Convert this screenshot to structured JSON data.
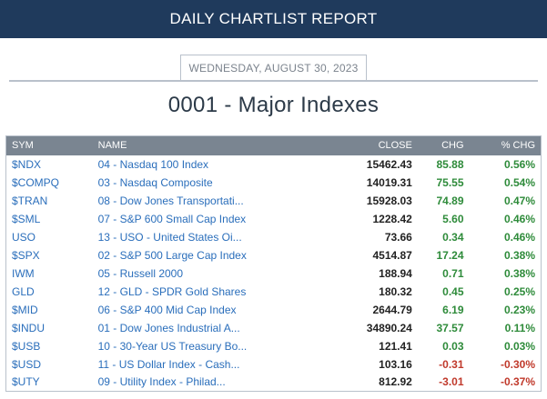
{
  "header": {
    "title": "DAILY CHARTLIST REPORT"
  },
  "date": "WEDNESDAY, AUGUST 30, 2023",
  "list_title": "0001 - Major Indexes",
  "columns": {
    "sym": "SYM",
    "name": "NAME",
    "close": "CLOSE",
    "chg": "CHG",
    "pct": "% CHG"
  },
  "colors": {
    "header_bg": "#1f3a5c",
    "table_header_bg": "#7a8591",
    "link": "#2a6ebb",
    "positive": "#2e8b3a",
    "negative": "#c0392b"
  },
  "rows": [
    {
      "sym": "$NDX",
      "name": "04 - Nasdaq 100 Index",
      "close": "15462.43",
      "chg": "85.88",
      "pct": "0.56%",
      "dir": "pos"
    },
    {
      "sym": "$COMPQ",
      "name": "03 - Nasdaq Composite",
      "close": "14019.31",
      "chg": "75.55",
      "pct": "0.54%",
      "dir": "pos"
    },
    {
      "sym": "$TRAN",
      "name": "08 - Dow Jones Transportati...",
      "close": "15928.03",
      "chg": "74.89",
      "pct": "0.47%",
      "dir": "pos"
    },
    {
      "sym": "$SML",
      "name": "07 - S&P 600 Small Cap Index",
      "close": "1228.42",
      "chg": "5.60",
      "pct": "0.46%",
      "dir": "pos"
    },
    {
      "sym": "USO",
      "name": "13 - USO - United States Oi...",
      "close": "73.66",
      "chg": "0.34",
      "pct": "0.46%",
      "dir": "pos"
    },
    {
      "sym": "$SPX",
      "name": "02 - S&P 500 Large Cap Index",
      "close": "4514.87",
      "chg": "17.24",
      "pct": "0.38%",
      "dir": "pos"
    },
    {
      "sym": "IWM",
      "name": "05 - Russell 2000",
      "close": "188.94",
      "chg": "0.71",
      "pct": "0.38%",
      "dir": "pos"
    },
    {
      "sym": "GLD",
      "name": "12 - GLD - SPDR Gold Shares",
      "close": "180.32",
      "chg": "0.45",
      "pct": "0.25%",
      "dir": "pos"
    },
    {
      "sym": "$MID",
      "name": "06 - S&P 400 Mid Cap Index",
      "close": "2644.79",
      "chg": "6.19",
      "pct": "0.23%",
      "dir": "pos"
    },
    {
      "sym": "$INDU",
      "name": "01 - Dow Jones Industrial A...",
      "close": "34890.24",
      "chg": "37.57",
      "pct": "0.11%",
      "dir": "pos"
    },
    {
      "sym": "$USB",
      "name": "10 - 30-Year US Treasury Bo...",
      "close": "121.41",
      "chg": "0.03",
      "pct": "0.03%",
      "dir": "pos"
    },
    {
      "sym": "$USD",
      "name": "11 - US Dollar Index - Cash...",
      "close": "103.16",
      "chg": "-0.31",
      "pct": "-0.30%",
      "dir": "neg"
    },
    {
      "sym": "$UTY",
      "name": "09 - Utility Index - Philad...",
      "close": "812.92",
      "chg": "-3.01",
      "pct": "-0.37%",
      "dir": "neg"
    }
  ]
}
